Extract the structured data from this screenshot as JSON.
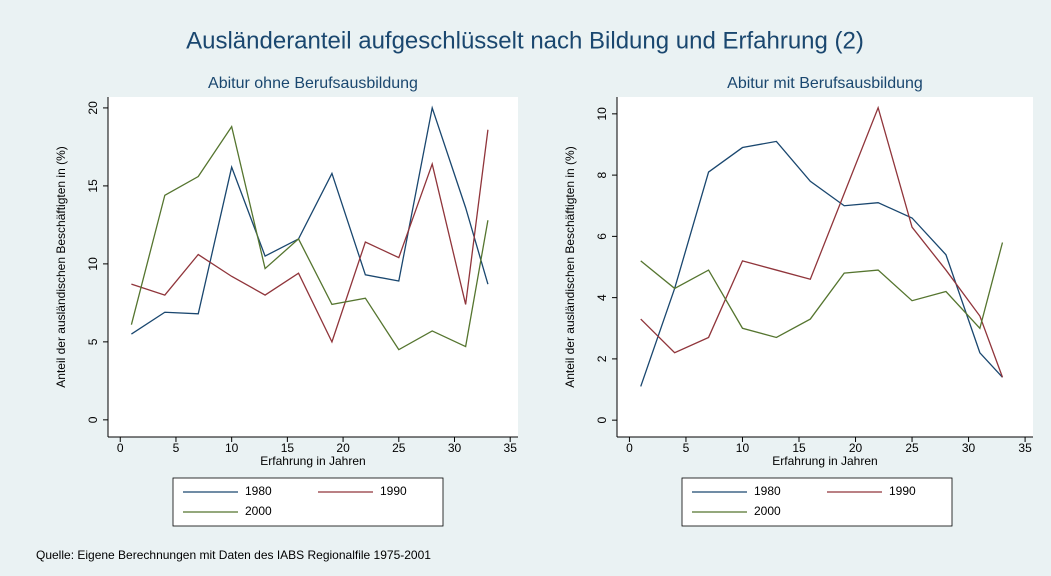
{
  "title": "Ausländeranteil aufgeschlüsselt nach Bildung und Erfahrung (2)",
  "note": "Quelle: Eigene Berechnungen mit Daten des IABS Regionalfile 1975-2001",
  "chart_data": [
    {
      "type": "line",
      "title": "Abitur ohne Berufsausbildung",
      "x_label": "Erfahrung in Jahren",
      "y_label": "Anteil der ausländischen Beschäftigten in (%)",
      "x": [
        1,
        4,
        7,
        10,
        13,
        16,
        19,
        22,
        25,
        28,
        31,
        33
      ],
      "series": [
        {
          "name": "1980",
          "color": "#1a476f",
          "values": [
            5.5,
            6.9,
            6.8,
            16.2,
            10.5,
            11.6,
            15.8,
            9.3,
            8.9,
            20,
            13.6,
            8.7
          ]
        },
        {
          "name": "1990",
          "color": "#90353b",
          "values": [
            8.7,
            8.0,
            10.6,
            9.2,
            8.0,
            9.4,
            5.0,
            11.4,
            10.4,
            16.4,
            7.4,
            18.6
          ]
        },
        {
          "name": "2000",
          "color": "#55752f",
          "values": [
            6.1,
            14.4,
            15.6,
            18.8,
            9.7,
            11.6,
            7.4,
            7.8,
            4.5,
            5.7,
            4.7,
            12.8
          ]
        }
      ],
      "xlim": [
        -1.1,
        35.7
      ],
      "xticks": [
        0,
        5,
        10,
        15,
        20,
        25,
        30,
        35
      ],
      "ylim": [
        -1.1,
        20.7
      ],
      "yticks": [
        0,
        5,
        10,
        15,
        20
      ]
    },
    {
      "type": "line",
      "title": "Abitur mit Berufsausbildung",
      "x_label": "Erfahrung in Jahren",
      "y_label": "Anteil der ausländischen Beschäftigten in (%)",
      "x": [
        1,
        4,
        7,
        10,
        13,
        16,
        19,
        22,
        25,
        28,
        31,
        33
      ],
      "series": [
        {
          "name": "1980",
          "color": "#1a476f",
          "values": [
            1.1,
            4.3,
            8.1,
            8.9,
            9.1,
            7.8,
            7.0,
            7.1,
            6.6,
            5.4,
            2.2,
            1.4
          ]
        },
        {
          "name": "1990",
          "color": "#90353b",
          "values": [
            3.3,
            2.2,
            2.7,
            5.2,
            4.9,
            4.6,
            7.4,
            10.2,
            6.3,
            4.9,
            3.4,
            1.4
          ]
        },
        {
          "name": "2000",
          "color": "#55752f",
          "values": [
            5.2,
            4.3,
            4.9,
            3.0,
            2.7,
            3.3,
            4.8,
            4.9,
            3.9,
            4.2,
            3.0,
            5.8
          ]
        }
      ],
      "xlim": [
        -1.1,
        35.7
      ],
      "xticks": [
        0,
        5,
        10,
        15,
        20,
        25,
        30,
        35
      ],
      "ylim": [
        -0.55,
        10.55
      ],
      "yticks": [
        0,
        2,
        4,
        6,
        8,
        10
      ]
    }
  ]
}
